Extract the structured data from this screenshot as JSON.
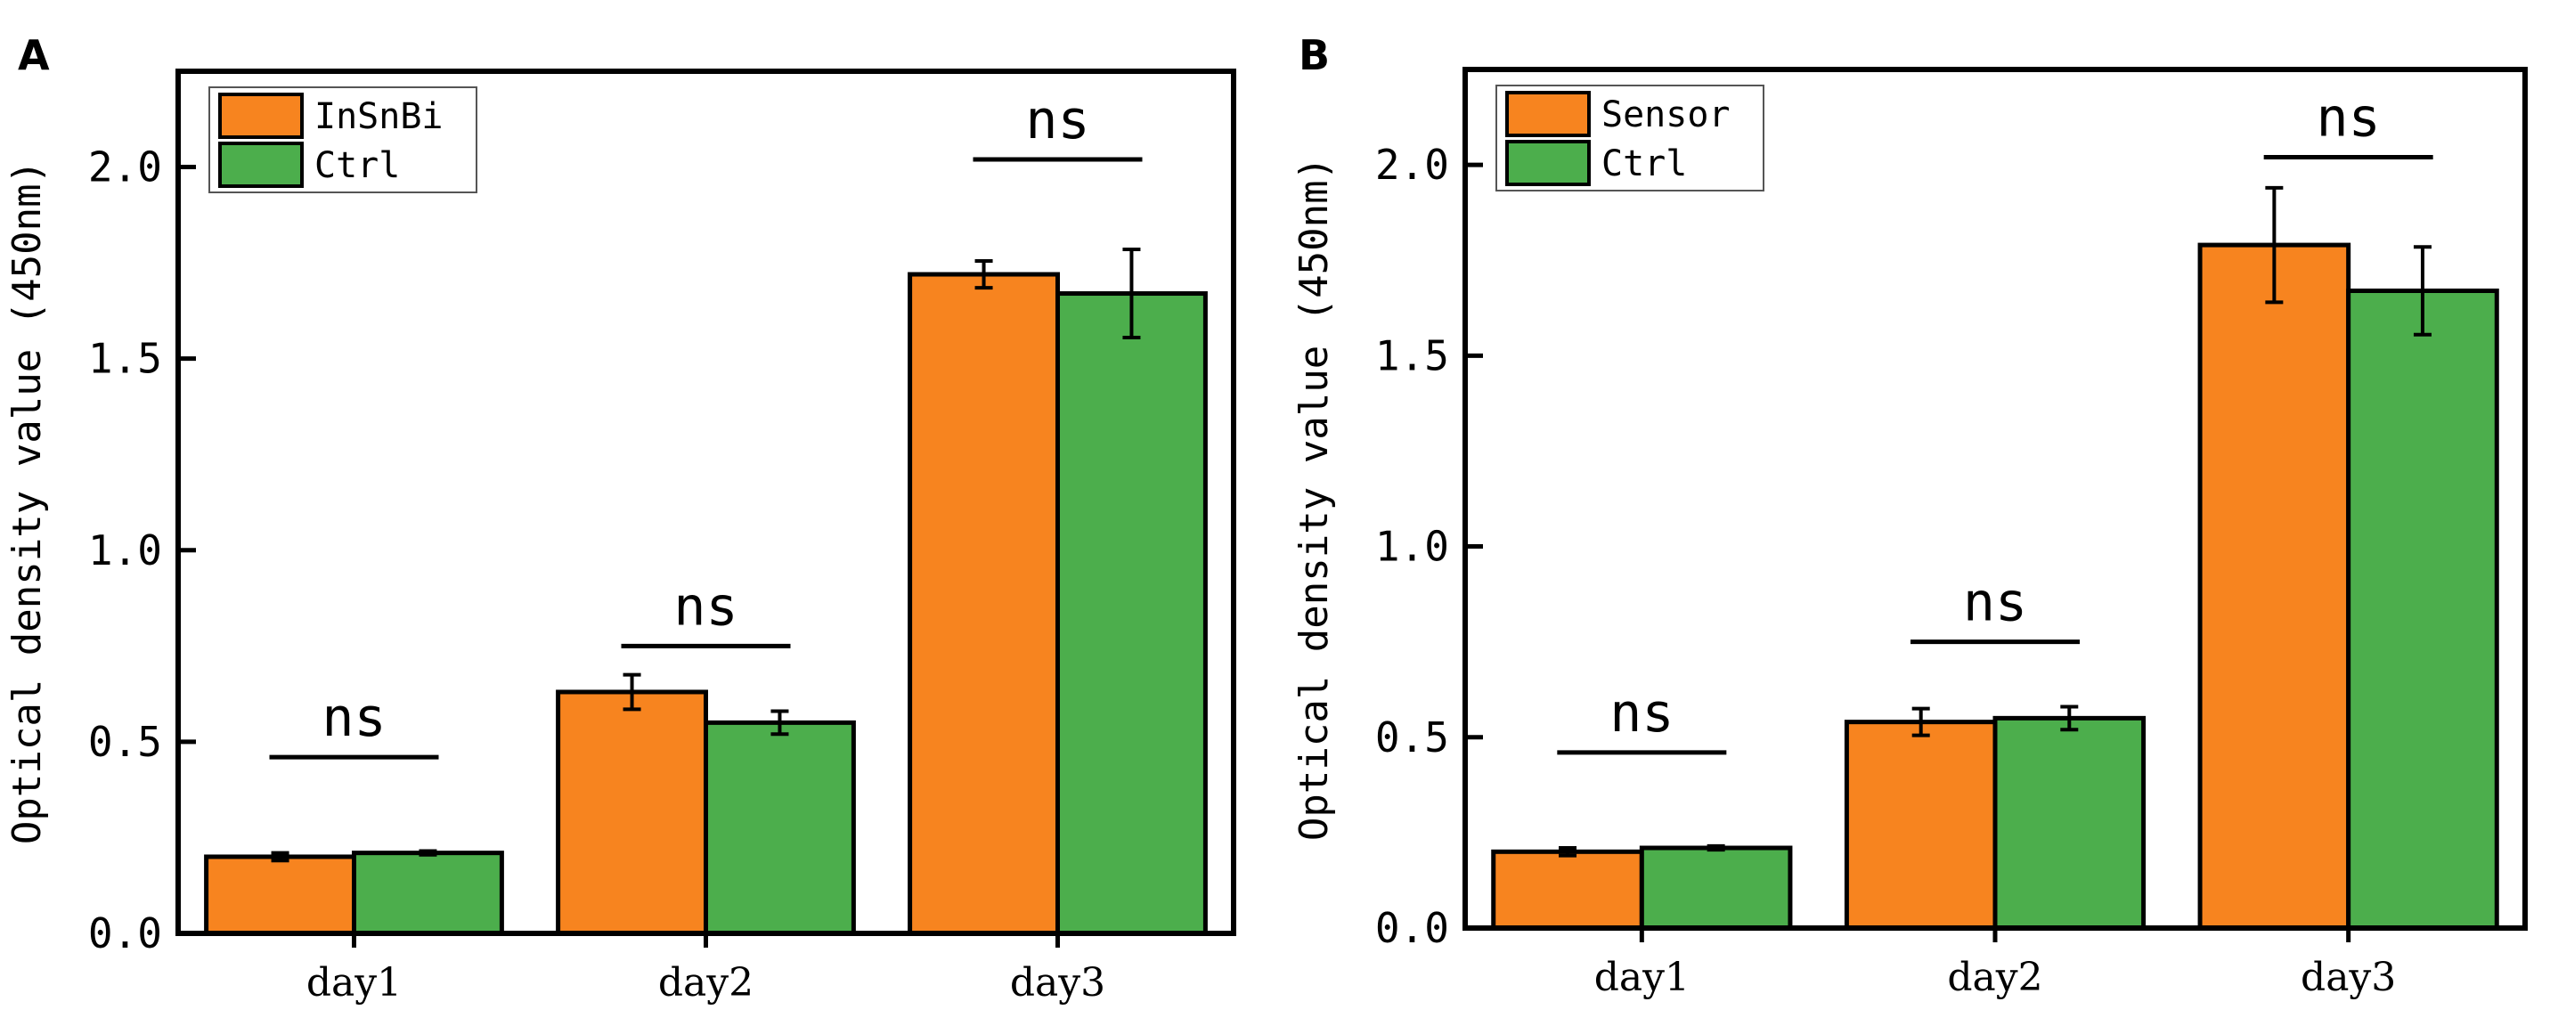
{
  "colors": {
    "series1": "#f7841f",
    "series2": "#4cae4c",
    "axis": "#000000",
    "background": "#ffffff"
  },
  "chart_data": [
    {
      "panel_label": "A",
      "type": "bar",
      "ylabel": "Optical density value (450nm)",
      "xlabel": "",
      "ylim": [
        0,
        2.25
      ],
      "yticks": [
        "0.0",
        "0.5",
        "1.0",
        "1.5",
        "2.0"
      ],
      "categories": [
        "day1",
        "day2",
        "day3"
      ],
      "legend_position": "top-left",
      "series": [
        {
          "name": "InSnBi",
          "values": [
            0.2,
            0.63,
            1.72
          ],
          "errors": [
            0.01,
            0.045,
            0.035
          ]
        },
        {
          "name": "Ctrl",
          "values": [
            0.21,
            0.55,
            1.67
          ],
          "errors": [
            0.005,
            0.03,
            0.115
          ]
        }
      ],
      "annotations": [
        {
          "text": "ns",
          "category": "day1",
          "line_y": 0.46
        },
        {
          "text": "ns",
          "category": "day2",
          "line_y": 0.75
        },
        {
          "text": "ns",
          "category": "day3",
          "line_y": 2.02
        }
      ]
    },
    {
      "panel_label": "B",
      "type": "bar",
      "ylabel": "Optical density value (450nm)",
      "xlabel": "",
      "ylim": [
        0,
        2.25
      ],
      "yticks": [
        "0.0",
        "0.5",
        "1.0",
        "1.5",
        "2.0"
      ],
      "categories": [
        "day1",
        "day2",
        "day3"
      ],
      "legend_position": "top-left",
      "series": [
        {
          "name": "Sensor",
          "values": [
            0.2,
            0.54,
            1.79
          ],
          "errors": [
            0.01,
            0.035,
            0.15
          ]
        },
        {
          "name": "Ctrl",
          "values": [
            0.21,
            0.55,
            1.67
          ],
          "errors": [
            0.005,
            0.03,
            0.115
          ]
        }
      ],
      "annotations": [
        {
          "text": "ns",
          "category": "day1",
          "line_y": 0.46
        },
        {
          "text": "ns",
          "category": "day2",
          "line_y": 0.75
        },
        {
          "text": "ns",
          "category": "day3",
          "line_y": 2.02
        }
      ]
    }
  ]
}
